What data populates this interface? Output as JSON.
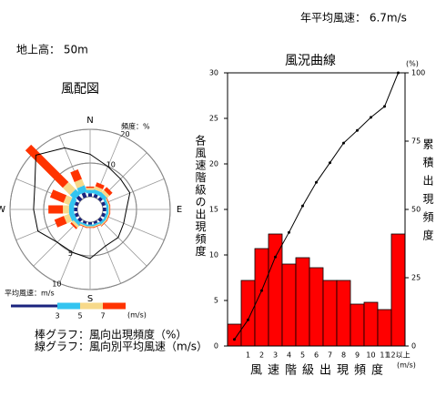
{
  "header": {
    "mean_wind": "年平均風速： 6.7m/s",
    "height": "地上高： 50m"
  },
  "chart_data": [
    {
      "type": "rose",
      "title": "風配図",
      "categories": [
        "N",
        null,
        null,
        null,
        "E",
        null,
        null,
        null,
        "S",
        null,
        null,
        null,
        "W",
        null,
        null,
        null
      ],
      "rlabel": "頻度：%",
      "rlim": [
        0,
        20
      ],
      "rticks": [
        10,
        20
      ],
      "r2lim": [
        0,
        10
      ],
      "r2ticks": [
        5,
        10
      ],
      "series": [
        {
          "color": "#1a237e",
          "values": [
            1,
            1,
            1,
            1,
            1,
            1,
            1,
            0.7,
            0.7,
            0.7,
            1,
            1,
            1,
            1,
            1.5,
            1.5
          ]
        },
        {
          "color": "#33c4f0",
          "values": [
            1,
            1.2,
            1.2,
            0.7,
            0.7,
            0.7,
            0.7,
            0.5,
            0.5,
            0.5,
            1,
            1.5,
            1.5,
            1.5,
            2,
            2
          ]
        },
        {
          "color": "#f7d98a",
          "values": [
            0.6,
            1,
            1,
            0.3,
            0.3,
            0.3,
            0.3,
            0.3,
            0.3,
            0.3,
            0.8,
            1.7,
            1.8,
            1.8,
            3,
            2
          ]
        },
        {
          "color": "#ff3300",
          "values": [
            0.4,
            1.2,
            1.2,
            0.2,
            0.2,
            0.2,
            0.2,
            0.2,
            0.2,
            0.2,
            0.5,
            3,
            4.3,
            4.3,
            15.7,
            3.1
          ]
        },
        {
          "color": "#000000",
          "axis": "r2",
          "values": [
            6.3,
            5,
            4.5,
            4.5,
            3.5,
            3.5,
            4,
            4,
            5.4,
            5,
            5,
            6.5,
            6.5,
            7,
            9.5,
            8
          ]
        }
      ],
      "legend_title": "平均風速：m/s",
      "legend_ticks": [
        3,
        5,
        7
      ],
      "legend_unit": "(m/s)",
      "notes": [
        "棒グラフ：風向出現頻度（%）",
        "線グラフ：風向別平均風速（m/s）"
      ]
    },
    {
      "type": "bar",
      "title": "風況曲線",
      "categories": [
        null,
        "1",
        "2",
        "3",
        "4",
        "5",
        "6",
        "7",
        "8",
        "9",
        "10",
        "11",
        "12以上"
      ],
      "xlabel": "風速階級出現頻度",
      "xunit": "(m/s)",
      "ylabel": "各風速階級の出現頻度",
      "y2label": "累積出現頻度",
      "y2unit": "(%)",
      "ylim": [
        0,
        30
      ],
      "yticks": [
        0,
        5,
        10,
        15,
        20,
        25,
        30
      ],
      "y2lim": [
        0,
        100
      ],
      "y2ticks": [
        0,
        25,
        50,
        75,
        100
      ],
      "series": [
        {
          "type": "bar",
          "color": "#ff0000",
          "values": [
            2.4,
            7.2,
            10.7,
            12.3,
            9.0,
            9.7,
            8.6,
            7.2,
            7.2,
            4.6,
            4.8,
            4.0,
            12.3
          ]
        },
        {
          "type": "line",
          "color": "#000000",
          "axis": "y2",
          "values": [
            2.4,
            9.6,
            20.3,
            32.6,
            41.6,
            51.3,
            59.9,
            67.1,
            74.3,
            78.9,
            83.7,
            87.7,
            100
          ]
        }
      ]
    }
  ]
}
